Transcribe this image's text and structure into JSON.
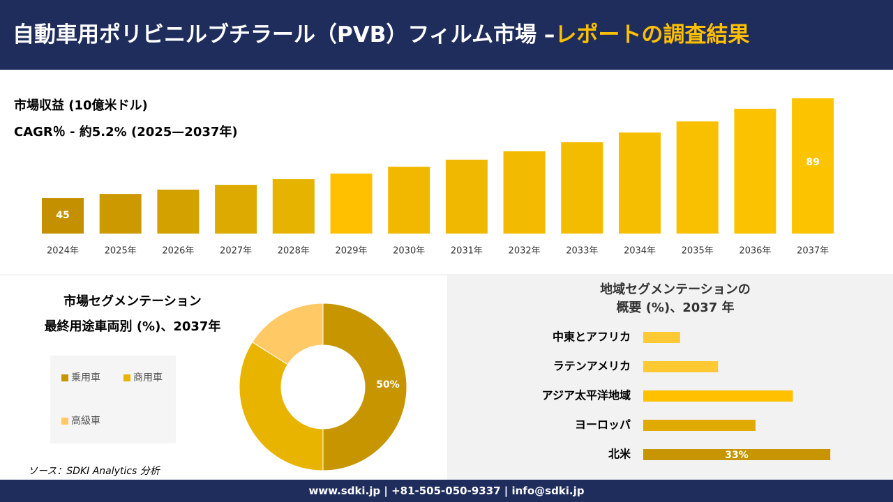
{
  "header": {
    "title": "自動車用ポリビニルブチラール（PVB）フィルム市場 –",
    "highlight": "レポートの調査結果"
  },
  "chart_data": [
    {
      "type": "bar",
      "subtitles": [
        "市場収益 (10億米ドル)",
        "CAGR％ - 約5.2% (2025—2037年)"
      ],
      "categories": [
        "2024年",
        "2025年",
        "2026年",
        "2027年",
        "2028年",
        "2029年",
        "2030年",
        "2031年",
        "2032年",
        "2033年",
        "2034年",
        "2035年",
        "2036年",
        "2037年"
      ],
      "values": [
        45,
        46.8,
        48.7,
        50.8,
        53.3,
        55.8,
        58.8,
        61.9,
        65.6,
        69.6,
        73.9,
        78.8,
        84.4,
        89
      ],
      "value_labels": [
        "45",
        null,
        null,
        null,
        null,
        null,
        null,
        null,
        null,
        null,
        null,
        null,
        null,
        "89"
      ],
      "colors": [
        "#c49000",
        "#cc9a00",
        "#d4a200",
        "#dcaa00",
        "#e6b400",
        "#ffc000",
        "#f2b800",
        "#f0b800",
        "#f2ba00",
        "#f4bc00",
        "#f6be00",
        "#f8c000",
        "#fac200",
        "#fcc400"
      ],
      "ylim": [
        29.3,
        89
      ]
    },
    {
      "type": "donut",
      "title": [
        "市場セグメンテーション",
        "最終用途車両別 (%)、2037年"
      ],
      "categories": [
        "乗用車",
        "商用車",
        "高級車"
      ],
      "values": [
        50,
        34,
        16
      ],
      "value_labels": [
        "50%",
        null,
        null
      ],
      "colors": [
        "#c69500",
        "#e8b400",
        "#ffc966"
      ]
    },
    {
      "type": "hbar",
      "title": [
        "地域セグメンテーションの",
        "概要 (%)、2037 年"
      ],
      "categories": [
        "中東とアフリカ",
        "ラテンアメリカ",
        "アジア太平洋地域",
        "ヨーロッパ",
        "北米"
      ],
      "values": [
        6.5,
        13.2,
        26.4,
        19.8,
        33
      ],
      "value_labels": [
        null,
        null,
        null,
        null,
        "33%"
      ],
      "colors": [
        "#ffc933",
        "#ffc933",
        "#ffc000",
        "#e0aa00",
        "#c69500"
      ],
      "xlim": [
        0,
        40
      ]
    }
  ],
  "source": "ソース：SDKI Analytics 分析",
  "footer": "www.sdki.jp | +81-505-050-9337 | info@sdki.jp"
}
